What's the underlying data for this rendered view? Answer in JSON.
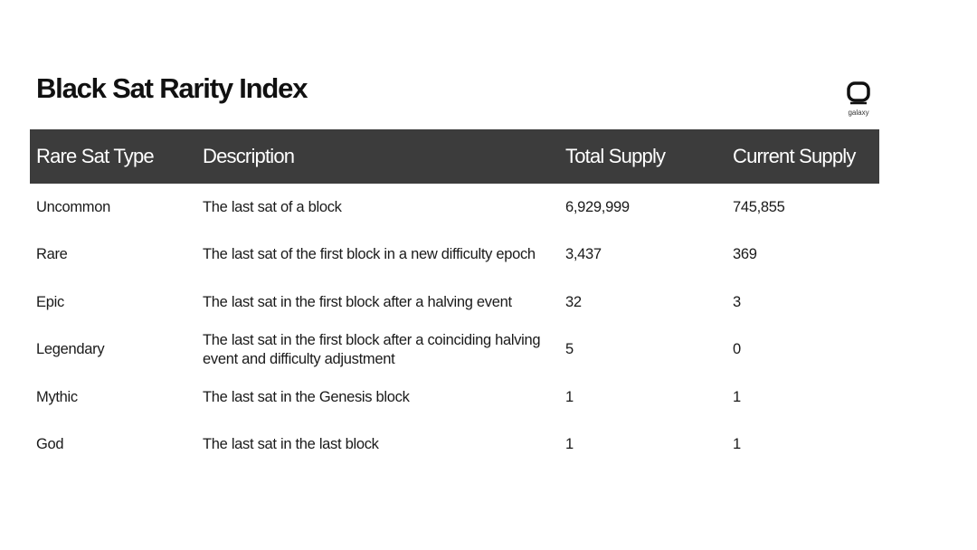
{
  "header": {
    "title": "Black Sat Rarity Index",
    "logo_text": "galaxy"
  },
  "table": {
    "columns": [
      "Rare Sat Type",
      "Description",
      "Total Supply",
      "Current Supply"
    ],
    "rows": [
      [
        "Uncommon",
        "The last sat of a block",
        "6,929,999",
        "745,855"
      ],
      [
        "Rare",
        "The last sat of the first block in a new difficulty epoch",
        "3,437",
        "369"
      ],
      [
        "Epic",
        "The last sat in the first block after a halving event",
        "32",
        "3"
      ],
      [
        "Legendary",
        "The last sat in the first block after a coinciding halving event and difficulty adjustment",
        "5",
        "0"
      ],
      [
        "Mythic",
        "The last sat in the Genesis block",
        "1",
        "1"
      ],
      [
        "God",
        "The last sat in the last block",
        "1",
        "1"
      ]
    ]
  }
}
